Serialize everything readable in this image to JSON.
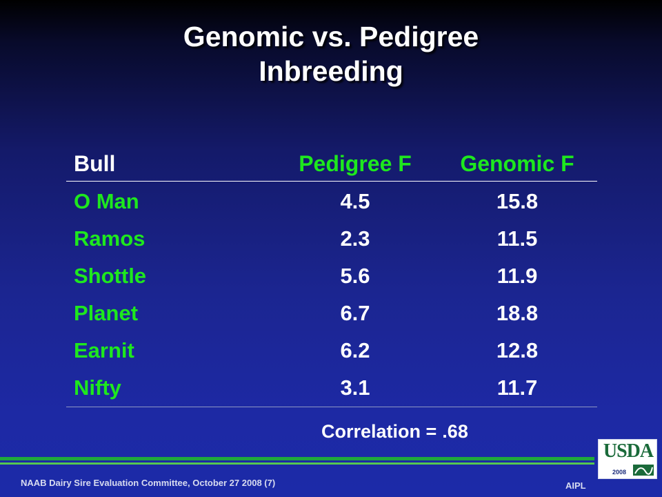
{
  "slide": {
    "title_line1": "Genomic vs. Pedigree",
    "title_line2": "Inbreeding"
  },
  "table": {
    "headers": [
      "Bull",
      "Pedigree F",
      "Genomic F"
    ],
    "header_colors": [
      "#ffffff",
      "#1ee81e",
      "#1ee81e"
    ],
    "rows": [
      {
        "bull": "O Man",
        "pedigree": "4.5",
        "genomic": "15.8"
      },
      {
        "bull": "Ramos",
        "pedigree": "2.3",
        "genomic": "11.5"
      },
      {
        "bull": "Shottle",
        "pedigree": "5.6",
        "genomic": "11.9"
      },
      {
        "bull": "Planet",
        "pedigree": "6.7",
        "genomic": "18.8"
      },
      {
        "bull": "Earnit",
        "pedigree": "6.2",
        "genomic": "12.8"
      },
      {
        "bull": "Nifty",
        "pedigree": "3.1",
        "genomic": "11.7"
      }
    ]
  },
  "correlation": {
    "label": "Correlation =",
    "value": ".68"
  },
  "footer": {
    "left": "NAAB Dairy Sire Evaluation Committee, October 27 2008 (7)",
    "right": "AIPL"
  },
  "logo": {
    "name": "usda-logo",
    "text": "USDA",
    "year": "2008"
  },
  "colors": {
    "accent_green": "#1ee81e",
    "footer_bar": "#1fa83c"
  }
}
